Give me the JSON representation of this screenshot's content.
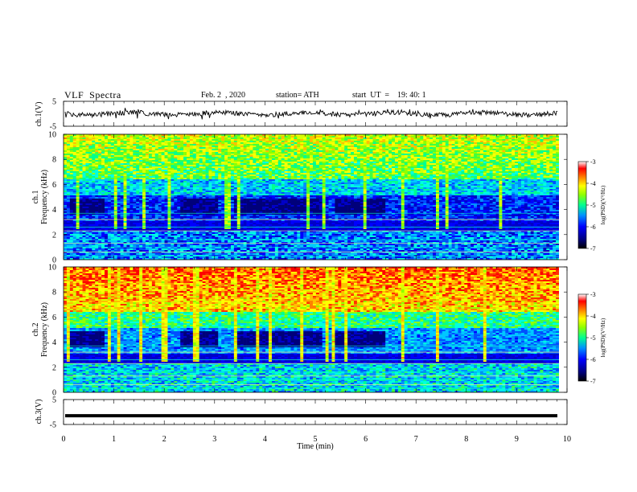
{
  "header": {
    "title": "VLF  Spectra",
    "date": "Feb. 2  , 2020",
    "station": "station= ATH",
    "start_ut": "start  UT  =    19: 40: 1"
  },
  "chart_data": [
    {
      "type": "line",
      "panel": "ch1-waveform",
      "ylabel": "ch.1(V)",
      "ylim": [
        -5,
        5
      ],
      "y_ticks": [
        "5",
        "-5"
      ],
      "xlim": [
        0,
        10
      ],
      "description_values": "waveform centered near 0 V with small fluctuations"
    },
    {
      "type": "heatmap",
      "panel": "ch1-spectrogram",
      "ylabel": "ch.1 Frequency  (kHz)",
      "ylim": [
        0,
        10
      ],
      "y_ticks": [
        "0",
        "2",
        "4",
        "6",
        "8",
        "10"
      ],
      "xlim": [
        0,
        10
      ],
      "colorbar": {
        "label": "log(PSD)(V²/Hz)",
        "range": [
          -7,
          -3
        ],
        "ticks": [
          "-3",
          "-4",
          "-5",
          "-6",
          "-7"
        ]
      }
    },
    {
      "type": "heatmap",
      "panel": "ch2-spectrogram",
      "ylabel": "ch.2 Frequency  (kHz)",
      "ylim": [
        0,
        10
      ],
      "y_ticks": [
        "0",
        "2",
        "4",
        "6",
        "8",
        "10"
      ],
      "xlim": [
        0,
        10
      ],
      "colorbar": {
        "label": "log(PSD)(V²/Hz)",
        "range": [
          -7,
          -3
        ],
        "ticks": [
          "-3",
          "-4",
          "-5",
          "-6",
          "-7"
        ]
      }
    },
    {
      "type": "line",
      "panel": "ch3-waveform",
      "ylabel": "ch.3(V)",
      "ylim": [
        -5,
        5
      ],
      "y_ticks": [
        "5",
        "-5"
      ],
      "xlim": [
        0,
        10
      ],
      "values_note": "flat line at approximately -1.5 V"
    }
  ],
  "x_axis": {
    "label": "Time  (min)",
    "ticks": [
      "0",
      "1",
      "2",
      "3",
      "4",
      "5",
      "6",
      "7",
      "8",
      "9",
      "10"
    ]
  },
  "colors": {
    "colormap": [
      "#00007a",
      "#0000ff",
      "#0080ff",
      "#00e0ff",
      "#00ff80",
      "#80ff00",
      "#ffff00",
      "#ff8000",
      "#ff0000",
      "#ffffff"
    ]
  }
}
